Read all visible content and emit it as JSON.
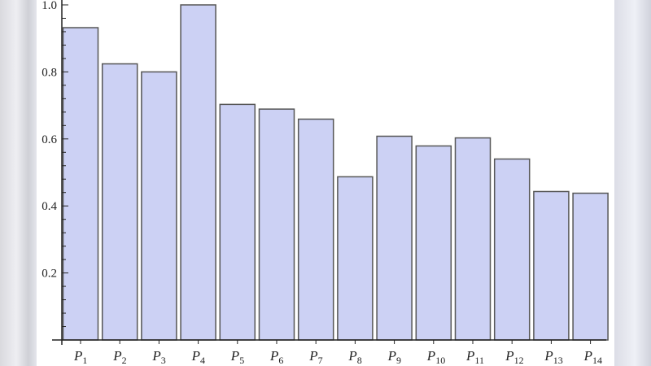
{
  "chart_data": {
    "type": "bar",
    "title": "",
    "xlabel": "",
    "ylabel": "",
    "categories": [
      {
        "base": "P",
        "sub": "1"
      },
      {
        "base": "P",
        "sub": "2"
      },
      {
        "base": "P",
        "sub": "3"
      },
      {
        "base": "P",
        "sub": "4"
      },
      {
        "base": "P",
        "sub": "5"
      },
      {
        "base": "P",
        "sub": "6"
      },
      {
        "base": "P",
        "sub": "7"
      },
      {
        "base": "P",
        "sub": "8"
      },
      {
        "base": "P",
        "sub": "9"
      },
      {
        "base": "P",
        "sub": "10"
      },
      {
        "base": "P",
        "sub": "11"
      },
      {
        "base": "P",
        "sub": "12"
      },
      {
        "base": "P",
        "sub": "13"
      },
      {
        "base": "P",
        "sub": "14"
      }
    ],
    "values": [
      0.932,
      0.824,
      0.8,
      1.0,
      0.703,
      0.689,
      0.659,
      0.487,
      0.608,
      0.579,
      0.603,
      0.54,
      0.443,
      0.438
    ],
    "ylim": [
      0,
      1.0
    ],
    "yticks": [
      "0.2",
      "0.4",
      "0.6",
      "0.8",
      "1.0"
    ],
    "grid": false,
    "bar_color": "#ccd1f4",
    "edge_color": "#555555"
  }
}
